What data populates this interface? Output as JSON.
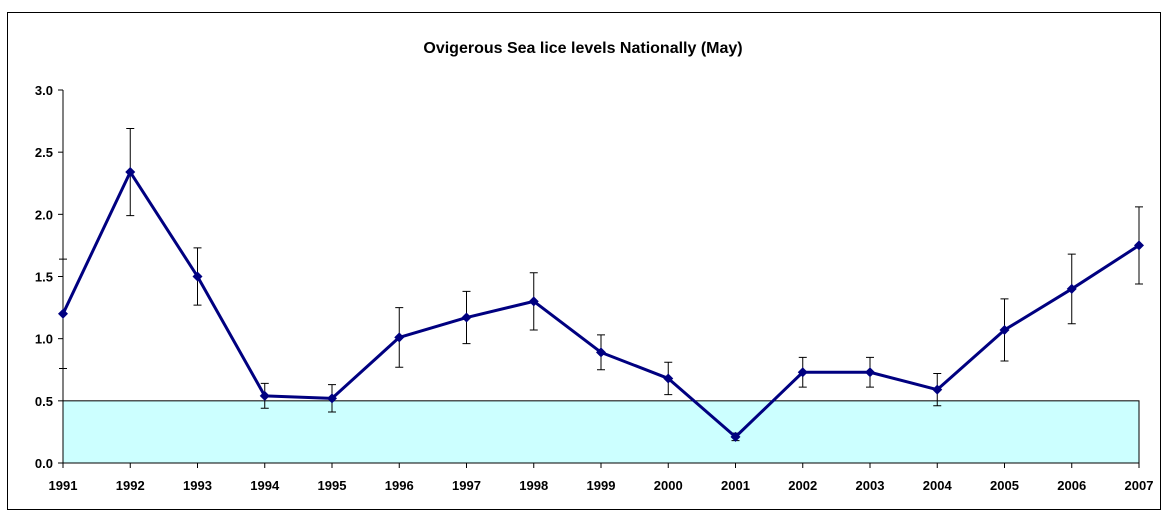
{
  "chart_data": {
    "type": "line",
    "title": "Ovigerous Sea lice levels Nationally (May)",
    "categories": [
      "1991",
      "1992",
      "1993",
      "1994",
      "1995",
      "1996",
      "1997",
      "1998",
      "1999",
      "2000",
      "2001",
      "2002",
      "2003",
      "2004",
      "2005",
      "2006",
      "2007"
    ],
    "series": [
      {
        "color": "#000080",
        "values": [
          1.2,
          2.34,
          1.5,
          0.54,
          0.52,
          1.01,
          1.17,
          1.3,
          0.89,
          0.68,
          0.21,
          0.73,
          0.73,
          0.59,
          1.07,
          1.4,
          1.75
        ],
        "errors": [
          0.44,
          0.35,
          0.23,
          0.1,
          0.11,
          0.24,
          0.21,
          0.23,
          0.14,
          0.13,
          0.03,
          0.12,
          0.12,
          0.13,
          0.25,
          0.28,
          0.31
        ]
      }
    ],
    "ylim": [
      0,
      3
    ],
    "yticks": [
      {
        "value": 0,
        "label": "0.0"
      },
      0.5,
      {
        "value": 1,
        "label": "1.0"
      },
      1.5,
      {
        "value": 2,
        "label": "2.0"
      },
      2.5,
      {
        "value": 3,
        "label": "3.0"
      }
    ],
    "shaded_band": {
      "from": 0,
      "to": 0.5,
      "color": "#ccffff"
    },
    "grid": false
  }
}
